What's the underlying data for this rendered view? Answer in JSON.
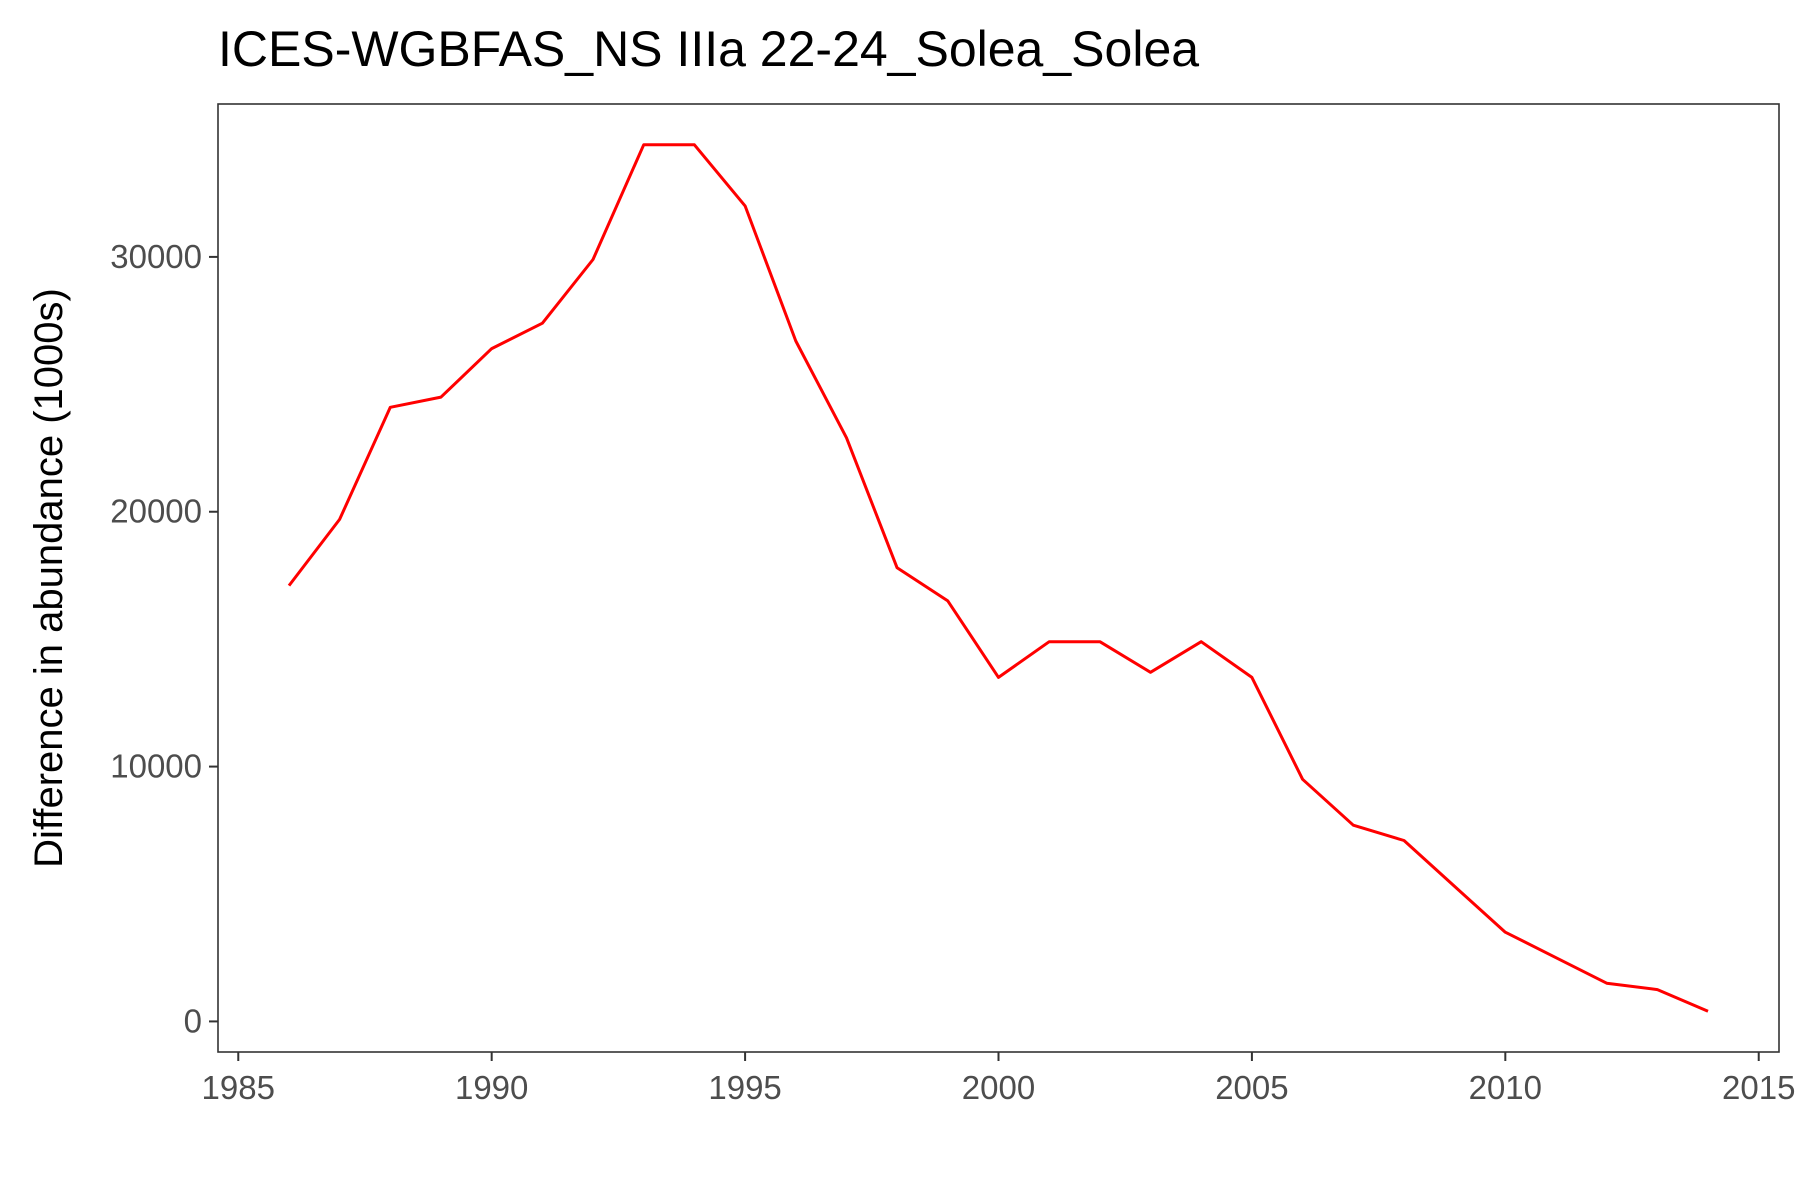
{
  "chart_data": {
    "type": "line",
    "title": "ICES-WGBFAS_NS IIIa 22-24_Solea_Solea",
    "xlabel": "",
    "ylabel": "Difference in abundance (1000s)",
    "xlim": [
      1984.6,
      2015.4
    ],
    "ylim": [
      -1200,
      36000
    ],
    "xticks": [
      1985,
      1990,
      1995,
      2000,
      2005,
      2010,
      2015
    ],
    "yticks": [
      0,
      10000,
      20000,
      30000
    ],
    "xtick_labels": [
      "1985",
      "1990",
      "1995",
      "2000",
      "2005",
      "2010",
      "2015"
    ],
    "ytick_labels": [
      "0",
      "10000",
      "20000",
      "30000"
    ],
    "grid": false,
    "series": [
      {
        "color": "#ff0000",
        "x": [
          1986,
          1987,
          1988,
          1989,
          1990,
          1991,
          1992,
          1993,
          1994,
          1995,
          1996,
          1997,
          1998,
          1999,
          2000,
          2001,
          2002,
          2003,
          2004,
          2005,
          2006,
          2007,
          2008,
          2009,
          2010,
          2011,
          2012,
          2013,
          2014
        ],
        "y": [
          17100,
          19700,
          24100,
          24500,
          26400,
          27400,
          29900,
          34400,
          34400,
          32000,
          26700,
          22900,
          17800,
          16500,
          13500,
          14900,
          14900,
          13700,
          14900,
          13500,
          9500,
          7700,
          7100,
          5300,
          3500,
          2500,
          1500,
          1250,
          400
        ]
      }
    ]
  }
}
